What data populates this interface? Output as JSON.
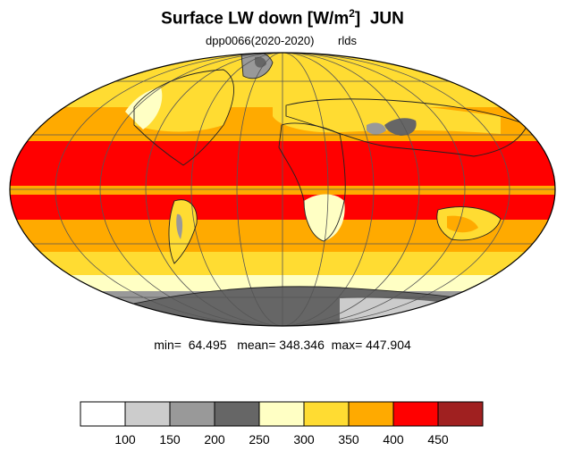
{
  "title": {
    "main": "Surface LW down [W/m",
    "sup": "2",
    "close": "]",
    "month": "JUN"
  },
  "subtitle": {
    "left": "dpp0066(2020-2020)",
    "right": "rlds"
  },
  "stats": {
    "text": "min=  64.495   mean= 348.346  max= 447.904"
  },
  "colorbar": {
    "colors": [
      "#ffffff",
      "#cccccc",
      "#999999",
      "#666666",
      "#ffffc4",
      "#ffdc32",
      "#ffaa00",
      "#ff0000",
      "#a02020"
    ],
    "ticks": [
      "100",
      "150",
      "200",
      "250",
      "300",
      "350",
      "400",
      "450"
    ]
  },
  "map": {
    "projection": "mollweide",
    "ocean_band_colors": {
      "tropics": "#ff0000",
      "subtropics": "#ffaa00",
      "midlat": "#ffdc32",
      "highlat": "#ffffc4",
      "antarctica": "#999999",
      "antarctica_interior": "#666666"
    }
  }
}
